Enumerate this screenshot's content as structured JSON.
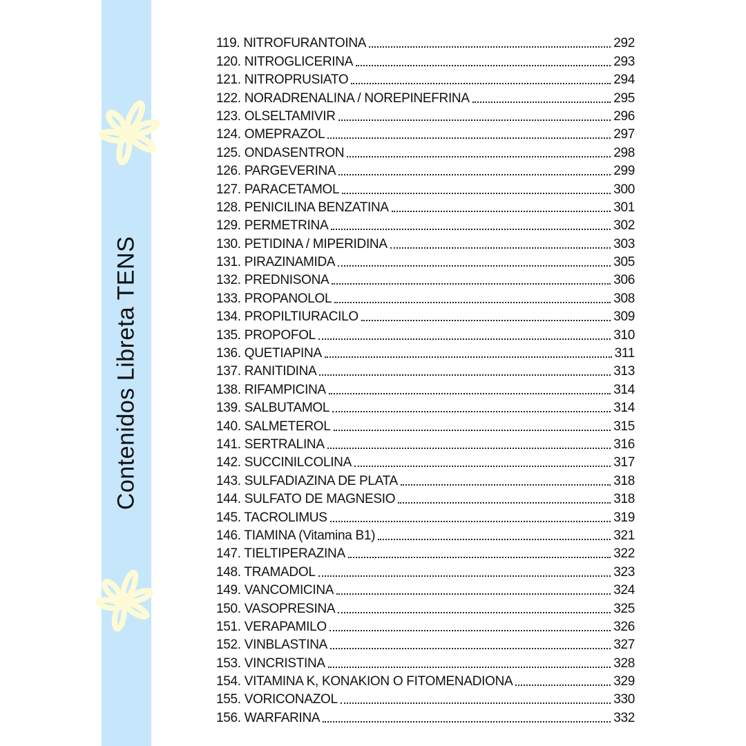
{
  "sidebar": {
    "title": "Contenidos Libreta TENS",
    "color": "#c6e6fb",
    "flower_color": "#fdfbd5",
    "icons": [
      "flower-doodle",
      "flower-doodle"
    ]
  },
  "entries": [
    {
      "label": "119. NITROFURANTOINA",
      "page": "292"
    },
    {
      "label": "120. NITROGLICERINA",
      "page": "293"
    },
    {
      "label": "121. NITROPRUSIATO",
      "page": "294"
    },
    {
      "label": "122. NORADRENALINA / NOREPINEFRINA",
      "page": "295"
    },
    {
      "label": "123. OLSELTAMIVIR",
      "page": "296"
    },
    {
      "label": "124. OMEPRAZOL",
      "page": "297"
    },
    {
      "label": "125. ONDASENTRON",
      "page": "298"
    },
    {
      "label": "126. PARGEVERINA",
      "page": "299"
    },
    {
      "label": "127. PARACETAMOL",
      "page": "300"
    },
    {
      "label": "128. PENICILINA BENZATINA",
      "page": "301"
    },
    {
      "label": "129. PERMETRINA",
      "page": "302"
    },
    {
      "label": "130. PETIDINA / MIPERIDINA",
      "page": "303"
    },
    {
      "label": "131. PIRAZINAMIDA",
      "page": "305"
    },
    {
      "label": "132. PREDNISONA",
      "page": "306"
    },
    {
      "label": "133. PROPANOLOL",
      "page": "308"
    },
    {
      "label": "134. PROPILTIURACILO",
      "page": "309"
    },
    {
      "label": "135. PROPOFOL",
      "page": "310"
    },
    {
      "label": "136. QUETIAPINA",
      "page": "311"
    },
    {
      "label": "137. RANITIDINA",
      "page": "313"
    },
    {
      "label": "138. RIFAMPICINA",
      "page": "314"
    },
    {
      "label": "139. SALBUTAMOL",
      "page": "314"
    },
    {
      "label": "140. SALMETEROL",
      "page": "315"
    },
    {
      "label": "141. SERTRALINA",
      "page": "316"
    },
    {
      "label": "142. SUCCINILCOLINA",
      "page": "317"
    },
    {
      "label": "143. SULFADIAZINA DE PLATA",
      "page": "318"
    },
    {
      "label": "144. SULFATO DE MAGNESIO",
      "page": "318"
    },
    {
      "label": "145. TACROLIMUS",
      "page": "319"
    },
    {
      "label": "146. TIAMINA (Vitamina B1)",
      "page": "321"
    },
    {
      "label": "147. TIELTIPERAZINA",
      "page": "322"
    },
    {
      "label": "148. TRAMADOL",
      "page": "323"
    },
    {
      "label": "149. VANCOMICINA",
      "page": "324"
    },
    {
      "label": "150. VASOPRESINA",
      "page": "325"
    },
    {
      "label": "151. VERAPAMILO",
      "page": "326"
    },
    {
      "label": "152. VINBLASTINA",
      "page": "327"
    },
    {
      "label": "153. VINCRISTINA",
      "page": "328"
    },
    {
      "label": "154. VITAMINA K, KONAKION O FITOMENADIONA",
      "page": "329"
    },
    {
      "label": "155. VORICONAZOL",
      "page": "330"
    },
    {
      "label": "156. WARFARINA",
      "page": "332"
    }
  ]
}
